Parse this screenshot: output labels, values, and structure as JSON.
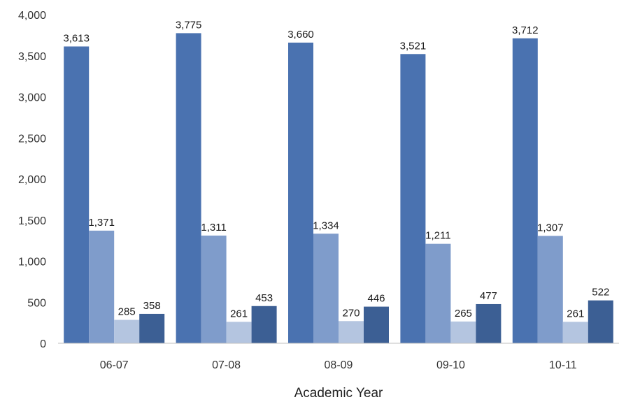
{
  "chart_data": {
    "type": "bar",
    "xlabel": "Academic Year",
    "ylabel": "",
    "categories": [
      "06-07",
      "07-08",
      "08-09",
      "09-10",
      "10-11"
    ],
    "ylim": [
      0,
      4000
    ],
    "yticks": [
      "0",
      "500",
      "1,000",
      "1,500",
      "2,000",
      "2,500",
      "3,000",
      "3,500",
      "4,000"
    ],
    "grid": false,
    "legend": "none",
    "series": [
      {
        "values": [
          3613,
          3775,
          3660,
          3521,
          3712
        ],
        "labels": [
          "3,613",
          "3,775",
          "3,660",
          "3,521",
          "3,712"
        ],
        "color": "#4a72b0"
      },
      {
        "values": [
          1371,
          1311,
          1334,
          1211,
          1307
        ],
        "labels": [
          "1,371",
          "1,311",
          "1,334",
          "1,211",
          "1,307"
        ],
        "color": "#7f9ccb"
      },
      {
        "values": [
          285,
          261,
          270,
          265,
          261
        ],
        "labels": [
          "285",
          "261",
          "270",
          "265",
          "261"
        ],
        "color": "#b4c5e0"
      },
      {
        "values": [
          358,
          453,
          446,
          477,
          522
        ],
        "labels": [
          "358",
          "453",
          "446",
          "477",
          "522"
        ],
        "color": "#3c5f94"
      }
    ]
  }
}
